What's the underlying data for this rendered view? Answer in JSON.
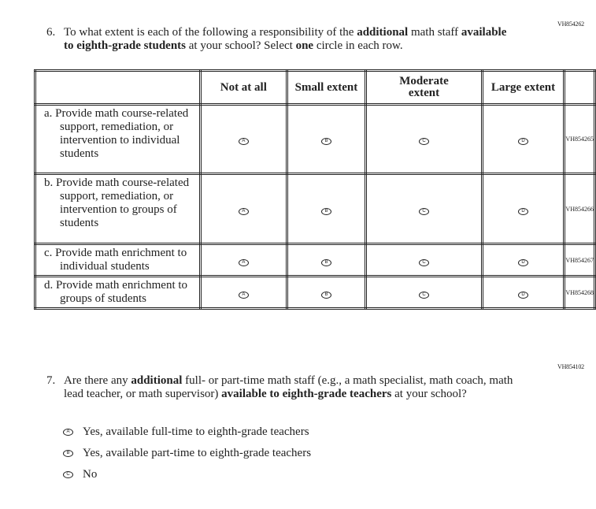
{
  "q6": {
    "code": "VH854262",
    "number": "6.",
    "text_html": "To what extent is each of the following a responsibility of the <b>additional</b> math staff <b>available to eighth-grade students</b> at your school? Select <b>one</b> circle in each row.",
    "columns": [
      "Not at all",
      "Small extent",
      "Moderate extent",
      "Large extent"
    ],
    "bubbles": [
      "A",
      "B",
      "C",
      "D"
    ],
    "rows": [
      {
        "label": "a. Provide math course-related support, remediation, or intervention to individual students",
        "code": "VH854265"
      },
      {
        "label": "b. Provide math course-related support, remediation, or intervention to groups of students",
        "code": "VH854266"
      },
      {
        "label": "c. Provide math enrichment to individual students",
        "code": "VH854267"
      },
      {
        "label": "d. Provide math enrichment to groups of students",
        "code": "VH854268"
      }
    ]
  },
  "q7": {
    "code": "VH854102",
    "number": "7.",
    "options": [
      {
        "bubble": "A",
        "label": "Yes, available full-time to eighth-grade teachers"
      },
      {
        "bubble": "B",
        "label": "Yes, available part-time to eighth-grade teachers"
      },
      {
        "bubble": "C",
        "label": "No"
      }
    ]
  }
}
